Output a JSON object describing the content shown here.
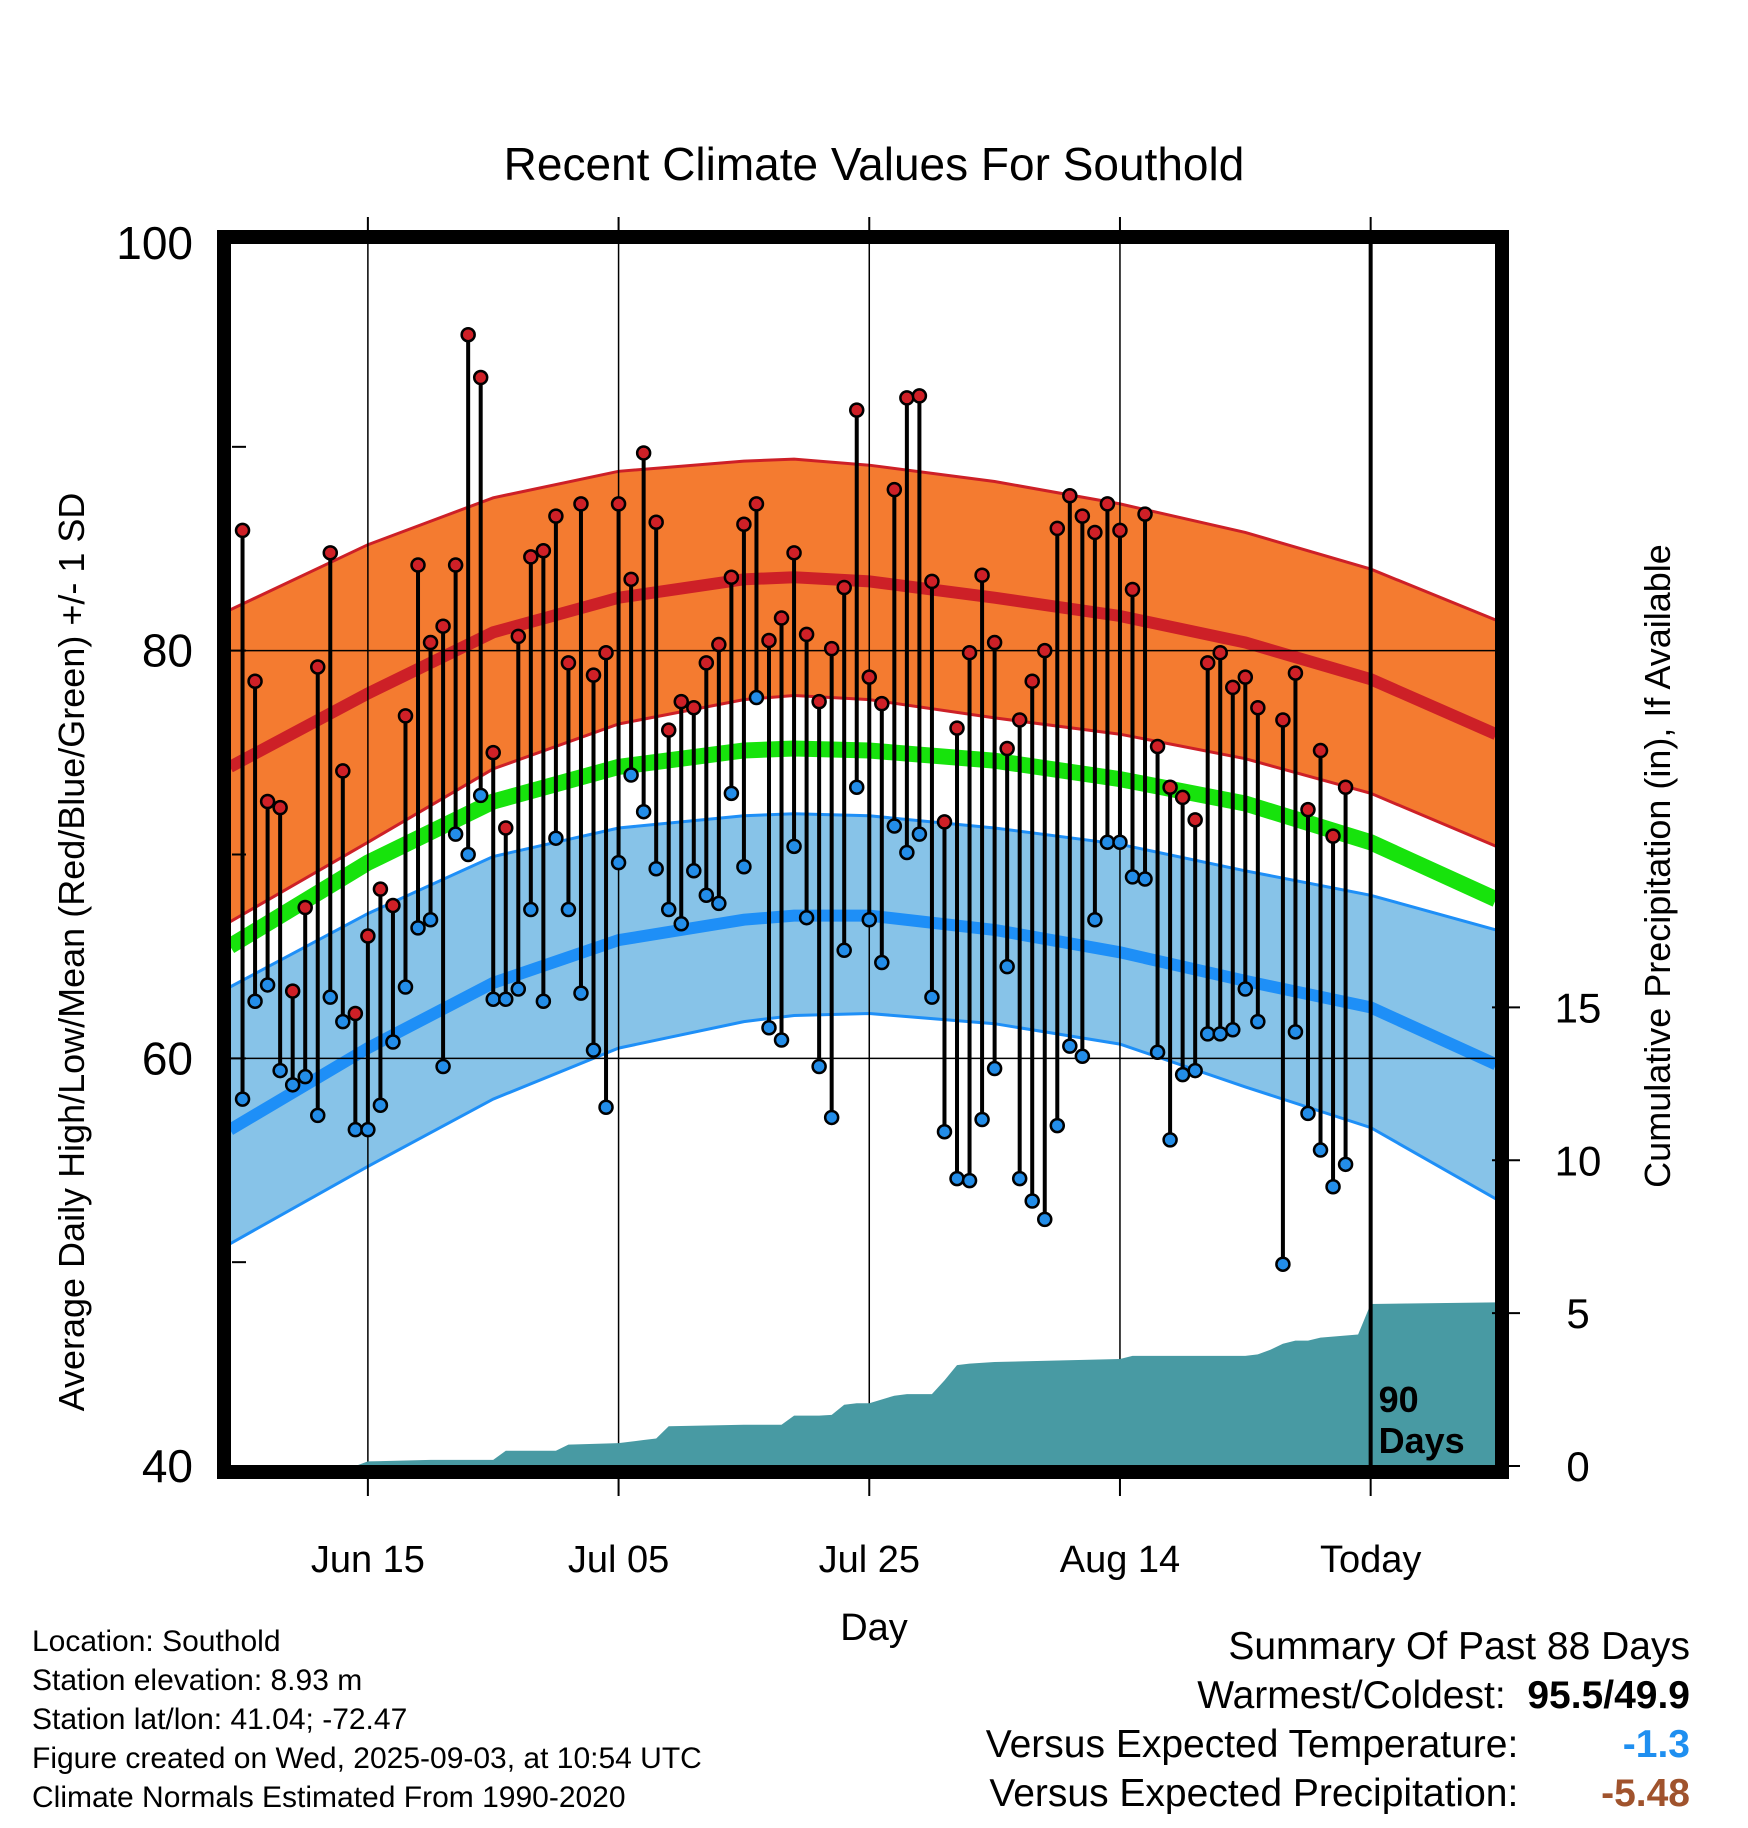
{
  "chart_data": {
    "type": "line",
    "title": "Recent Climate Values For Southold",
    "xlabel": "Day",
    "ylabel_left": "Average Daily High/Low/Mean (Red/Blue/Green) +/- 1 SD",
    "ylabel_right": "Cumulative Precipitation (in), If Available",
    "xlim": [
      -11,
      90
    ],
    "ylim": [
      40,
      100
    ],
    "y2lim": [
      0,
      40
    ],
    "yticks_major": [
      40,
      60,
      80,
      100
    ],
    "yticks_minor": [
      50,
      70,
      90
    ],
    "y2ticks": [
      0,
      5,
      10,
      15
    ],
    "xticks": [
      {
        "day": 0,
        "label": "Jun 15"
      },
      {
        "day": 20,
        "label": "Jul 05"
      },
      {
        "day": 40,
        "label": "Jul 25"
      },
      {
        "day": 60,
        "label": "Aug 14"
      },
      {
        "day": 80,
        "label": "Today"
      }
    ],
    "today_marker": {
      "day": 80,
      "label_line1": "90",
      "label_line2": "Days"
    },
    "normals": {
      "days": [
        -11,
        0,
        10,
        20,
        30,
        34,
        40,
        50,
        60,
        70,
        80,
        90
      ],
      "high_mean": [
        74.3,
        77.9,
        80.9,
        82.6,
        83.5,
        83.6,
        83.4,
        82.6,
        81.7,
        80.4,
        78.6,
        75.9
      ],
      "high_plus_sd": [
        82.0,
        85.2,
        87.5,
        88.8,
        89.3,
        89.4,
        89.1,
        88.3,
        87.2,
        85.8,
        84.0,
        81.5
      ],
      "high_minus_sd": [
        66.7,
        70.6,
        74.2,
        76.4,
        77.6,
        77.8,
        77.6,
        76.7,
        75.9,
        74.7,
        73.0,
        70.4
      ],
      "mean": [
        65.5,
        69.6,
        72.6,
        74.3,
        75.1,
        75.2,
        75.1,
        74.6,
        73.7,
        72.5,
        70.6,
        67.8
      ],
      "low_mean": [
        56.5,
        60.5,
        63.7,
        65.8,
        66.8,
        67.0,
        67.0,
        66.3,
        65.2,
        63.8,
        62.5,
        59.7
      ],
      "low_plus_sd": [
        63.5,
        67.1,
        69.9,
        71.3,
        71.9,
        72.0,
        71.9,
        71.3,
        70.5,
        69.2,
        68.0,
        66.3
      ],
      "low_minus_sd": [
        50.9,
        54.7,
        58.0,
        60.5,
        61.8,
        62.1,
        62.2,
        61.7,
        60.7,
        58.6,
        56.6,
        53.1
      ]
    },
    "daily": {
      "days": [
        -10,
        -9,
        -8,
        -7,
        -6,
        -5,
        -4,
        -3,
        -2,
        -1,
        0,
        1,
        2,
        3,
        4,
        5,
        6,
        7,
        8,
        9,
        10,
        11,
        12,
        13,
        14,
        15,
        16,
        17,
        18,
        19,
        20,
        21,
        22,
        23,
        24,
        25,
        26,
        27,
        28,
        29,
        30,
        31,
        32,
        33,
        34,
        35,
        36,
        37,
        38,
        39,
        40,
        41,
        42,
        43,
        44,
        45,
        46,
        47,
        48,
        49,
        50,
        51,
        52,
        53,
        54,
        55,
        56,
        57,
        58,
        59,
        60,
        61,
        62,
        63,
        64,
        65,
        66,
        67,
        68,
        69,
        70,
        71,
        72,
        73,
        74,
        75,
        76,
        77,
        78,
        79
      ],
      "high": [
        85.9,
        78.5,
        72.6,
        72.3,
        63.3,
        67.4,
        79.2,
        84.8,
        74.1,
        62.2,
        66.0,
        68.3,
        67.5,
        76.8,
        84.2,
        80.4,
        81.2,
        84.2,
        95.5,
        93.4,
        75.0,
        71.3,
        80.7,
        84.6,
        84.9,
        86.6,
        79.4,
        87.2,
        78.8,
        79.9,
        87.2,
        83.5,
        89.7,
        86.3,
        76.1,
        77.5,
        77.2,
        79.4,
        80.3,
        83.6,
        86.2,
        87.2,
        80.5,
        81.6,
        84.8,
        80.8,
        77.5,
        80.1,
        83.1,
        91.8,
        78.7,
        77.4,
        87.9,
        92.4,
        92.5,
        83.4,
        71.6,
        76.2,
        79.9,
        83.7,
        80.4,
        75.2,
        76.6,
        78.5,
        80.0,
        86.0,
        87.6,
        86.6,
        85.8,
        87.2,
        85.9,
        83.0,
        86.7,
        75.3,
        73.3,
        72.8,
        71.7,
        79.4,
        79.9,
        78.2,
        78.7,
        77.2,
        null,
        76.6,
        78.9,
        72.2,
        75.1,
        70.9,
        73.3,
        null
      ],
      "low": [
        58.0,
        62.8,
        63.6,
        59.4,
        58.7,
        59.1,
        57.2,
        63.0,
        61.8,
        56.5,
        56.5,
        57.7,
        60.8,
        63.5,
        66.4,
        66.8,
        59.6,
        71.0,
        70.0,
        72.9,
        62.9,
        62.9,
        63.4,
        67.3,
        62.8,
        70.8,
        67.3,
        63.2,
        60.4,
        57.6,
        69.6,
        73.9,
        72.1,
        69.3,
        67.3,
        66.6,
        69.2,
        68.0,
        67.6,
        73.0,
        69.4,
        77.7,
        61.5,
        60.9,
        70.4,
        66.9,
        59.6,
        57.1,
        65.3,
        73.3,
        66.8,
        64.7,
        71.4,
        70.1,
        71.0,
        63.0,
        56.4,
        54.1,
        54.0,
        57.0,
        59.5,
        64.5,
        54.1,
        53.0,
        52.1,
        56.7,
        60.6,
        60.1,
        66.8,
        70.6,
        70.6,
        68.9,
        68.8,
        60.3,
        56.0,
        59.2,
        59.4,
        61.2,
        61.2,
        61.4,
        63.4,
        61.8,
        null,
        49.9,
        61.3,
        57.3,
        55.5,
        53.7,
        54.8,
        null
      ]
    },
    "precip": {
      "days": [
        -11,
        -1,
        0,
        5,
        10,
        11,
        15,
        16,
        20,
        22,
        23,
        24,
        30,
        33,
        34,
        36,
        37,
        38,
        39,
        40,
        42,
        43,
        45,
        46,
        47,
        48,
        50,
        60,
        61,
        62,
        64,
        65,
        70,
        71,
        72,
        73,
        74,
        75,
        76,
        79,
        80,
        90
      ],
      "cumulative": [
        0,
        0,
        0.15,
        0.2,
        0.2,
        0.5,
        0.5,
        0.7,
        0.75,
        0.85,
        0.9,
        1.3,
        1.35,
        1.35,
        1.65,
        1.65,
        1.67,
        2.0,
        2.05,
        2.05,
        2.3,
        2.35,
        2.35,
        2.8,
        3.3,
        3.35,
        3.4,
        3.5,
        3.6,
        3.6,
        3.6,
        3.6,
        3.6,
        3.65,
        3.8,
        4.0,
        4.1,
        4.1,
        4.2,
        4.3,
        5.3,
        5.35
      ]
    },
    "colors": {
      "high_band": "#f47b30",
      "high_line": "#cd2027",
      "low_band": "#87c3e8",
      "low_line": "#1e8ff7",
      "mean_line": "#17e30c",
      "precip_fill": "#489aa3",
      "high_dot": "#cf2027",
      "low_dot": "#238de8"
    }
  },
  "info": {
    "location": "Location: Southold",
    "elevation": "Station elevation: 8.93 m",
    "latlon": "Station lat/lon: 41.04; -72.47",
    "created": "Figure created on Wed, 2025-09-03, at 10:54 UTC",
    "normals": "Climate Normals Estimated From 1990-2020"
  },
  "summary": {
    "title": "Summary Of Past 88 Days",
    "warm_cold_label": "Warmest/Coldest:",
    "warm_value": "95.5",
    "slash": "/",
    "cold_value": "49.9",
    "temp_label": "Versus Expected Temperature:",
    "temp_value": "-1.3",
    "temp_color": "#1f8ff0",
    "precip_label": "Versus Expected Precipitation:",
    "precip_value": "-5.48",
    "precip_color": "#a0532d"
  }
}
